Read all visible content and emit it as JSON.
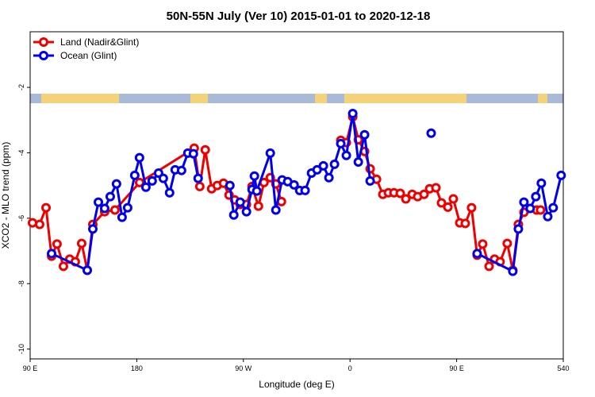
{
  "chart_data": {
    "type": "line",
    "title": "50N-55N July (Ver 10)   2015-01-01 to 2020-12-18",
    "x_label": "Longitude (deg E)",
    "y_label": "XCO2 - MLO trend (ppm)",
    "xlim": [
      90,
      540
    ],
    "xticks": [
      {
        "value": 90,
        "label": "90 E"
      },
      180,
      {
        "value": 270,
        "label": "90 W"
      },
      {
        "value": 360,
        "label": "0"
      },
      {
        "value": 450,
        "label": "90 E"
      },
      540
    ],
    "ylim": [
      -10.3,
      -0.3
    ],
    "yticks": [
      -2,
      -4,
      -6,
      -8,
      -10
    ],
    "legend": "top-left",
    "series": [
      {
        "name": "Land (Nadir&Glint)",
        "color": "#ee0000",
        "x": [
          92.0,
          98.0,
          103.4,
          108.1,
          112.7,
          118.1,
          123.4,
          128.1,
          133.5,
          138.2,
          142.9,
          152.9,
          161.6,
          182.4,
          228.5,
          233.2,
          237.8,
          243.2,
          247.9,
          253.2,
          257.9,
          262.6,
          267.3,
          272.6,
          277.3,
          282.7,
          287.4,
          292.7,
          297.4,
          302.1,
          null,
          352.2,
          356.9,
          362.3,
          367.0,
          372.3,
          377.0,
          382.4,
          387.7,
          392.4,
          397.1,
          402.4,
          407.1,
          412.5,
          417.1,
          422.5,
          427.2,
          432.5,
          437.2,
          442.6,
          447.2,
          452.6,
          457.3,
          462.6,
          467.3,
          472.0,
          477.4,
          482.0,
          486.7,
          492.7,
          497.4,
          502.1,
          506.8,
          517.5,
          520.8
        ],
        "values": [
          -6.14,
          -6.19,
          -5.68,
          -7.16,
          -6.79,
          -7.47,
          -7.25,
          -7.33,
          -6.77,
          -7.59,
          -6.19,
          -5.8,
          -5.75,
          -4.91,
          -3.86,
          -5.03,
          -3.91,
          -5.1,
          -5.0,
          -4.93,
          -5.29,
          -5.44,
          -5.58,
          -5.58,
          -5.03,
          -5.63,
          -4.91,
          -4.76,
          -4.95,
          -5.49,
          null,
          -3.62,
          -3.69,
          -2.9,
          -3.6,
          -3.96,
          -4.49,
          -4.81,
          -5.27,
          -5.22,
          -5.22,
          -5.24,
          -5.41,
          -5.27,
          -5.34,
          -5.27,
          -5.1,
          -5.07,
          -5.53,
          -5.66,
          -5.41,
          -6.14,
          -6.16,
          -5.68,
          -7.13,
          -6.79,
          -7.47,
          -7.25,
          -7.33,
          -6.77,
          -7.59,
          -6.19,
          -5.82,
          -5.75,
          -5.75
        ]
      },
      {
        "name": "Ocean (Glint)",
        "color": "#0000ee",
        "x": [
          108.1,
          138.2,
          142.9,
          147.6,
          152.9,
          157.6,
          162.9,
          167.6,
          172.3,
          178.3,
          182.3,
          187.7,
          193.0,
          198.4,
          202.4,
          207.7,
          212.4,
          217.8,
          223.1,
          227.8,
          231.8,
          null,
          258.6,
          261.9,
          267.3,
          272.6,
          277.3,
          279.3,
          281.3,
          292.7,
          297.4,
          302.7,
          307.4,
          312.8,
          317.5,
          322.1,
          327.5,
          332.2,
          337.5,
          342.2,
          346.9,
          352.2,
          356.9,
          362.3,
          367.0,
          372.3,
          377.0,
          null,
          428.5,
          null,
          467.3,
          497.4,
          502.1,
          506.8,
          512.1,
          516.8,
          521.5,
          526.9,
          531.5,
          538.2
        ],
        "values": [
          -7.08,
          -7.59,
          -6.33,
          -5.51,
          -5.7,
          -5.34,
          -4.95,
          -5.97,
          -5.68,
          -4.69,
          -4.15,
          -5.05,
          -4.86,
          -4.62,
          -4.78,
          -5.22,
          -4.52,
          -4.54,
          -4.01,
          -4.03,
          -4.78,
          null,
          -5.0,
          -5.9,
          -5.51,
          -5.8,
          -5.12,
          -4.71,
          -5.17,
          -4.01,
          -5.75,
          -4.83,
          -4.88,
          -4.98,
          -5.15,
          -5.15,
          -4.62,
          -4.52,
          -4.4,
          -4.76,
          -4.35,
          -3.72,
          -4.08,
          -2.8,
          -4.28,
          -3.45,
          -4.86,
          null,
          -3.4,
          null,
          -7.08,
          -7.62,
          -6.33,
          -5.51,
          -5.7,
          -5.34,
          -4.93,
          -5.95,
          -5.68,
          -4.69
        ]
      }
    ]
  }
}
